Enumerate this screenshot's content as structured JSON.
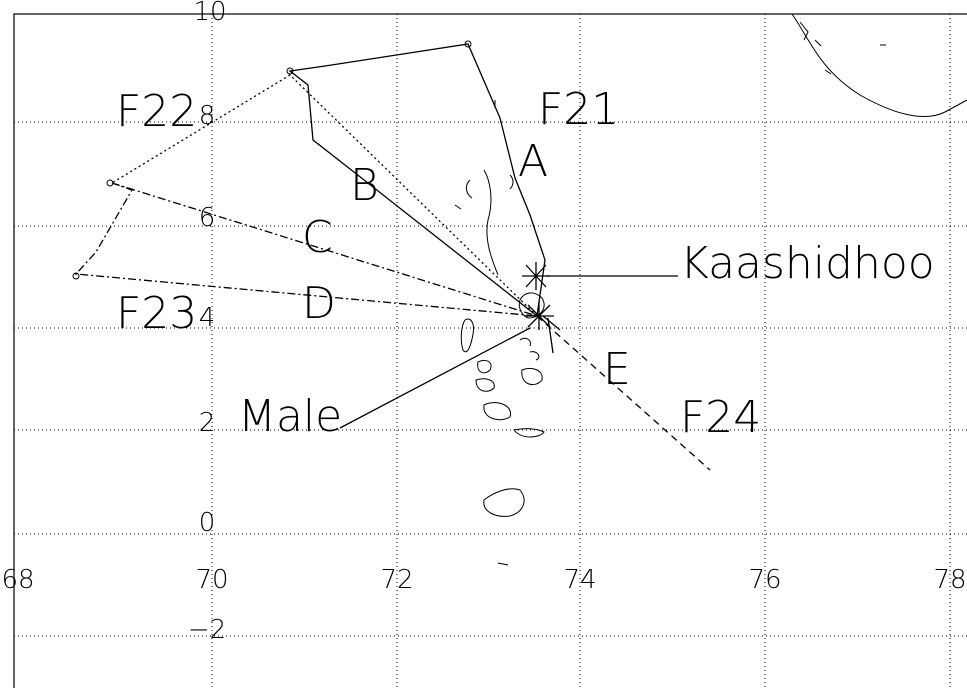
{
  "map": {
    "lon_labels": [
      "68",
      "70",
      "72",
      "74",
      "76",
      "78"
    ],
    "lat_labels": [
      "10",
      "8",
      "6",
      "4",
      "2",
      "0",
      "−2"
    ],
    "flight_labels": [
      "F21",
      "F22",
      "F23",
      "F24"
    ],
    "leg_labels": [
      "A",
      "B",
      "C",
      "D",
      "E"
    ],
    "places": [
      "Kaashidhoo",
      "Male"
    ]
  }
}
